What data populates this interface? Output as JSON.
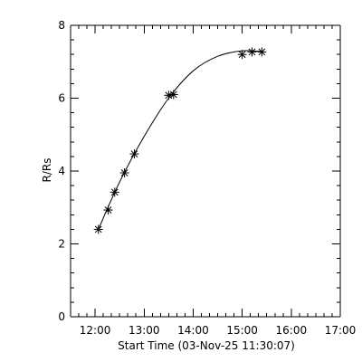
{
  "chart_data": {
    "type": "scatter",
    "xlabel": "Start Time (03-Nov-25 11:30:07)",
    "ylabel": "R/Rs",
    "xlim": [
      "11:30",
      "17:00"
    ],
    "ylim": [
      0,
      8
    ],
    "x_ticks": [
      "12:00",
      "13:00",
      "14:00",
      "15:00",
      "16:00",
      "17:00"
    ],
    "y_ticks": [
      "0",
      "2",
      "4",
      "6",
      "8"
    ],
    "grid": false,
    "marker": "asterisk",
    "series": [
      {
        "x": [
          "12:04",
          "12:16",
          "12:24",
          "12:36",
          "12:48",
          "13:30",
          "13:36",
          "15:00",
          "15:12",
          "15:24"
        ],
        "y": [
          2.4,
          2.93,
          3.42,
          3.95,
          4.47,
          6.08,
          6.1,
          7.2,
          7.27,
          7.27
        ]
      }
    ],
    "fit_curve": {
      "x": [
        "12:04",
        "12:30",
        "13:00",
        "13:30",
        "14:00",
        "14:30",
        "15:00",
        "15:24"
      ],
      "y": [
        2.4,
        3.7,
        4.95,
        6.0,
        6.75,
        7.15,
        7.3,
        7.28
      ]
    }
  }
}
